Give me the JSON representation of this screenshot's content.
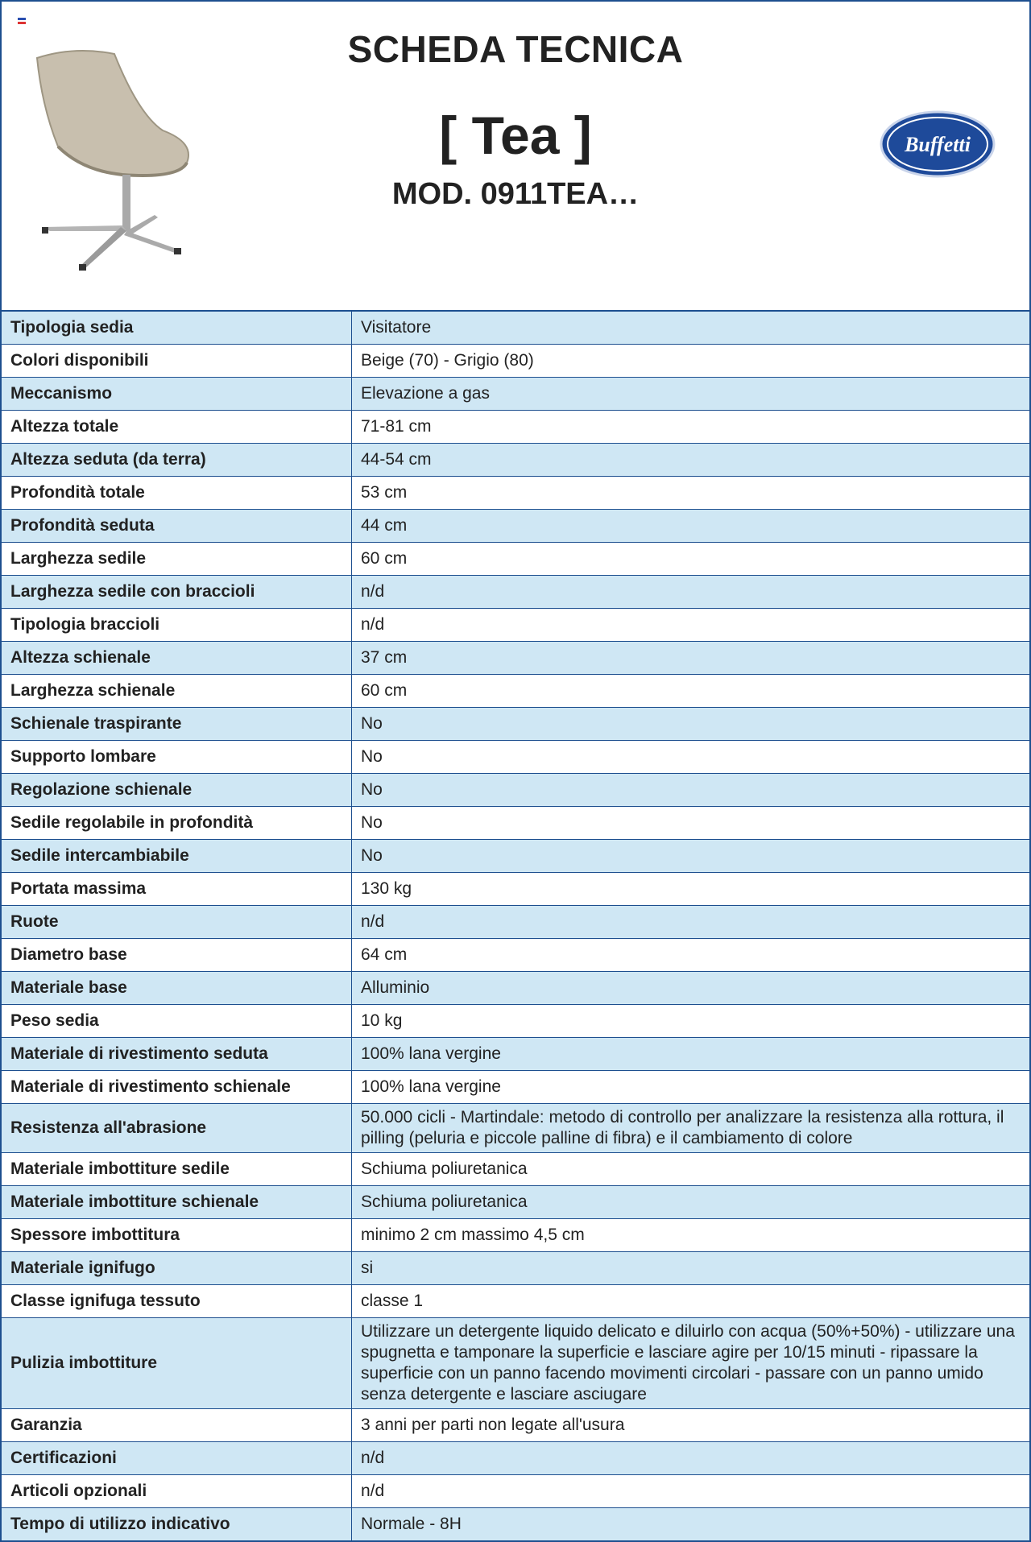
{
  "header": {
    "title": "SCHEDA TECNICA",
    "product": "[ Tea ]",
    "model": "MOD. 0911TEA…",
    "logo": "Buffetti"
  },
  "table": {
    "rows": [
      [
        "Tipologia sedia",
        "Visitatore"
      ],
      [
        "Colori disponibili",
        "Beige (70) - Grigio (80)"
      ],
      [
        "Meccanismo",
        "Elevazione a gas"
      ],
      [
        "Altezza totale",
        "71-81 cm"
      ],
      [
        "Altezza seduta (da terra)",
        "44-54 cm"
      ],
      [
        "Profondità totale",
        "53 cm"
      ],
      [
        "Profondità seduta",
        "44 cm"
      ],
      [
        "Larghezza sedile",
        "60 cm"
      ],
      [
        "Larghezza sedile con braccioli",
        "n/d"
      ],
      [
        "Tipologia braccioli",
        "n/d"
      ],
      [
        "Altezza schienale",
        "37 cm"
      ],
      [
        "Larghezza schienale",
        "60 cm"
      ],
      [
        "Schienale traspirante",
        "No"
      ],
      [
        "Supporto lombare",
        "No"
      ],
      [
        "Regolazione schienale",
        "No"
      ],
      [
        "Sedile regolabile in profondità",
        "No"
      ],
      [
        "Sedile intercambiabile",
        "No"
      ],
      [
        "Portata massima",
        "130 kg"
      ],
      [
        "Ruote",
        "n/d"
      ],
      [
        "Diametro base",
        "64 cm"
      ],
      [
        "Materiale base",
        "Alluminio"
      ],
      [
        "Peso sedia",
        "10 kg"
      ],
      [
        "Materiale di rivestimento seduta",
        "100% lana vergine"
      ],
      [
        "Materiale di rivestimento schienale",
        "100% lana vergine"
      ],
      [
        "Resistenza all'abrasione",
        "50.000 cicli - Martindale: metodo di controllo per analizzare la resistenza alla rottura, il pilling (peluria e piccole palline di fibra) e il cambiamento di colore"
      ],
      [
        "Materiale imbottiture sedile",
        "Schiuma poliuretanica"
      ],
      [
        "Materiale imbottiture schienale",
        "Schiuma poliuretanica"
      ],
      [
        "Spessore imbottitura",
        "minimo 2 cm massimo 4,5 cm"
      ],
      [
        "Materiale ignifugo",
        "si"
      ],
      [
        "Classe ignifuga tessuto",
        "classe 1"
      ],
      [
        "Pulizia imbottiture",
        "Utilizzare un detergente liquido delicato e diluirlo con acqua (50%+50%) - utilizzare una spugnetta e tamponare la superficie e lasciare agire per 10/15 minuti - ripassare la superficie con un panno facendo movimenti circolari - passare con un panno umido senza detergente e lasciare asciugare"
      ],
      [
        "Garanzia",
        "3 anni per parti non legate all'usura"
      ],
      [
        "Certificazioni",
        "n/d"
      ],
      [
        "Articoli opzionali",
        "n/d"
      ],
      [
        "Tempo di utilizzo indicativo",
        "Normale - 8H"
      ]
    ]
  }
}
